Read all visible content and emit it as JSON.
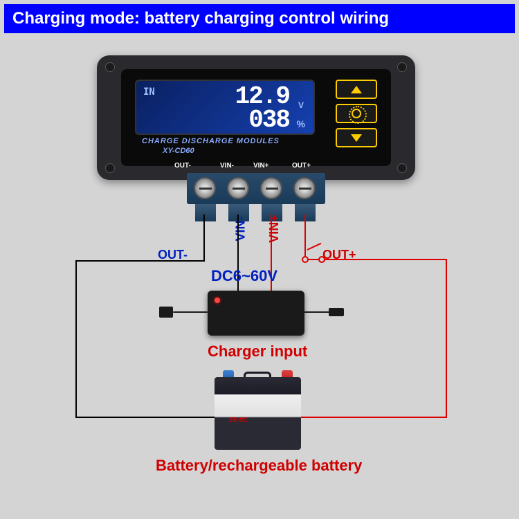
{
  "title": "Charging mode: battery charging control wiring",
  "module": {
    "lcd": {
      "in_label": "IN",
      "voltage": "12.9",
      "voltage_unit": "V",
      "percent": "038",
      "percent_unit": "%"
    },
    "label": "CHARGE DISCHARGE MODULES",
    "model": "XY-CD60",
    "pcb_labels": {
      "out_minus": "OUT-",
      "vin_minus": "VIN-",
      "vin_plus": "VIN+",
      "out_plus": "OUT+"
    }
  },
  "wire_labels": {
    "out_minus": "OUT-",
    "vin_minus": "VIN-",
    "vin_plus": "VIN+",
    "out_plus": "OUT+"
  },
  "dc_label": "DC6~60V",
  "charger_label": "Charger input",
  "battery_label": "Battery/rechargeable battery",
  "battery_brand": "S8·8C",
  "colors": {
    "title_bg": "#0000ff",
    "title_fg": "#ffffff",
    "bg": "#d4d4d4",
    "module_body": "#2a2a2e",
    "lcd_bg": "#1540b0",
    "lcd_text": "#ffffff",
    "btn_border": "#ffcc00",
    "wire_pos": "#d00000",
    "wire_neg": "#000000",
    "label_blue": "#0020c0",
    "label_red": "#d00000"
  }
}
